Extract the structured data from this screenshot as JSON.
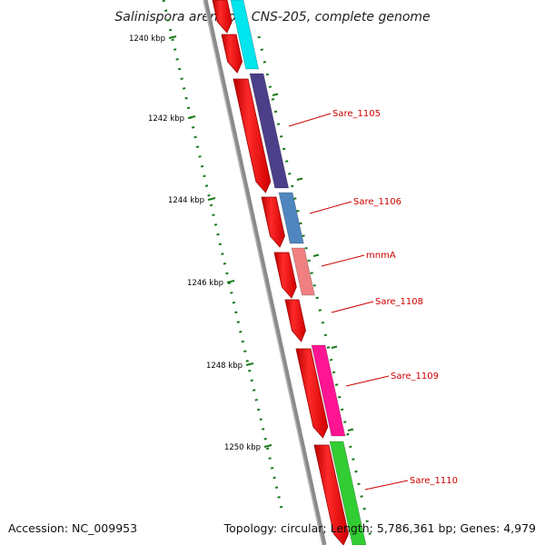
{
  "title": "Salinispora arenicola CNS-205, complete genome",
  "accession": "Accession: NC_009953",
  "summary": "Topology: circular; Length: 5,786,361 bp; Genes: 4,979",
  "ticks": [
    "1240 kbp",
    "1242 kbp",
    "1244 kbp",
    "1246 kbp",
    "1248 kbp",
    "1250 kbp"
  ],
  "genes": [
    {
      "label": "Sare_1105",
      "color": "#4b3f8a"
    },
    {
      "label": "Sare_1106",
      "color": "#4f86c0"
    },
    {
      "label": "mnmA",
      "color": "#f08080"
    },
    {
      "label": "Sare_1108",
      "color": ""
    },
    {
      "label": "Sare_1109",
      "color": "#ff1493"
    },
    {
      "label": "Sare_1110",
      "color": "#32cd32"
    }
  ],
  "colors": {
    "backbone": "#808080",
    "forward_strand": "#ff0000",
    "tick": "#1a7a1a",
    "label": "#cc0000",
    "cyan_gene": "#00e5ee"
  }
}
